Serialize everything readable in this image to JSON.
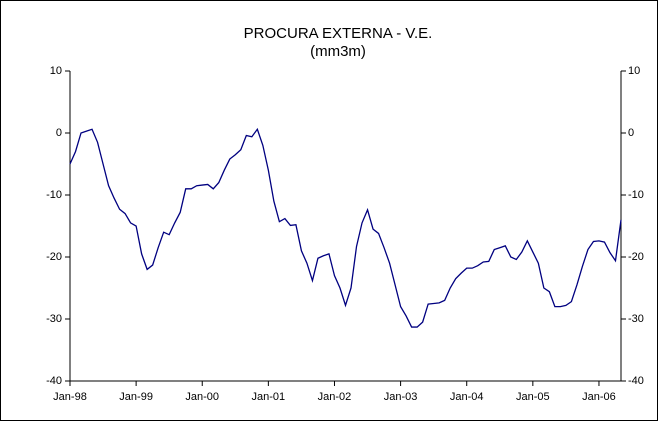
{
  "chart_data": {
    "type": "line",
    "title": "PROCURA EXTERNA - V.E.",
    "subtitle": "(mm3m)",
    "categories": [
      "Jan-98",
      null,
      null,
      null,
      null,
      null,
      null,
      null,
      null,
      null,
      null,
      null,
      "Jan-99",
      null,
      null,
      null,
      null,
      null,
      null,
      null,
      null,
      null,
      null,
      null,
      "Jan-00",
      null,
      null,
      null,
      null,
      null,
      null,
      null,
      null,
      null,
      null,
      null,
      "Jan-01",
      null,
      null,
      null,
      null,
      null,
      null,
      null,
      null,
      null,
      null,
      null,
      "Jan-02",
      null,
      null,
      null,
      null,
      null,
      null,
      null,
      null,
      null,
      null,
      null,
      "Jan-03",
      null,
      null,
      null,
      null,
      null,
      null,
      null,
      null,
      null,
      null,
      null,
      "Jan-04",
      null,
      null,
      null,
      null,
      null,
      null,
      null,
      null,
      null,
      null,
      null,
      "Jan-05",
      null,
      null,
      null,
      null,
      null,
      null,
      null,
      null,
      null,
      null,
      null,
      "Jan-06",
      null,
      null,
      null,
      null
    ],
    "series": [
      {
        "color": "#000080",
        "values": [
          -5,
          -3,
          0,
          0.3,
          0.6,
          -1.5,
          -5,
          -8.5,
          -10.5,
          -12.3,
          -13,
          -14.5,
          -15,
          -19.5,
          -22,
          -21.3,
          -18.5,
          -16,
          -16.4,
          -14.5,
          -12.8,
          -9,
          -9,
          -8.5,
          -8.4,
          -8.3,
          -9,
          -8,
          -6,
          -4.2,
          -3.5,
          -2.7,
          -0.4,
          -0.6,
          0.6,
          -2,
          -6,
          -11,
          -14.3,
          -13.8,
          -14.9,
          -14.8,
          -19,
          -21,
          -23.8,
          -20.2,
          -19.8,
          -19.5,
          -23,
          -25,
          -27.8,
          -25,
          -18.3,
          -14.5,
          -12.4,
          -15.5,
          -16.2,
          -18.5,
          -21,
          -24.5,
          -28,
          -29.5,
          -31.3,
          -31.3,
          -30.5,
          -27.6,
          -27.5,
          -27.4,
          -27,
          -25,
          -23.5,
          -22.6,
          -21.8,
          -21.8,
          -21.4,
          -20.8,
          -20.7,
          -18.8,
          -18.5,
          -18.2,
          -20,
          -20.4,
          -19.2,
          -17.4,
          -19.2,
          -21,
          -25,
          -25.6,
          -28,
          -28,
          -27.8,
          -27.2,
          -24.5,
          -21.5,
          -18.8,
          -17.5,
          -17.4,
          -17.6,
          -19.3,
          -20.6,
          -14
        ]
      }
    ],
    "ylim": [
      -40,
      10
    ],
    "yticks": [
      -40,
      -30,
      -20,
      -10,
      0,
      10
    ],
    "y2lim": [
      -40,
      10
    ],
    "y2ticks": [
      -40,
      -30,
      -20,
      -10,
      0,
      10
    ]
  }
}
